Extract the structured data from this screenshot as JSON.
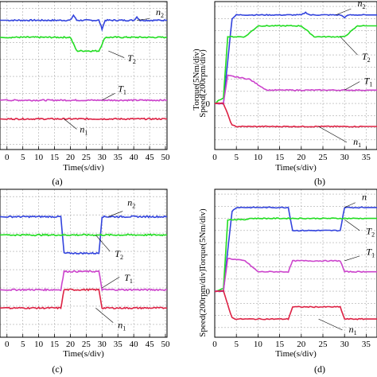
{
  "figure": {
    "panels": [
      {
        "id": "a",
        "caption": "(a)",
        "ylabel": "",
        "xlabel": "Time(s/div)",
        "xticks": [
          "0",
          "5",
          "10",
          "15",
          "20",
          "25",
          "30",
          "35",
          "40",
          "45",
          "50"
        ],
        "marker_zero": "",
        "labels": [
          {
            "text": "n",
            "sub": "2"
          },
          {
            "text": "T",
            "sub": "2"
          },
          {
            "text": "T",
            "sub": "1"
          },
          {
            "text": "n",
            "sub": "1"
          }
        ]
      },
      {
        "id": "b",
        "caption": "(b)",
        "ylabel": "Speed(200rpm/div)",
        "xlabel": "Time(s/div)",
        "xticks": [
          "0",
          "5",
          "10",
          "15",
          "20",
          "25",
          "30",
          "35"
        ],
        "marker_zero": "0",
        "labels": [
          {
            "text": "n",
            "sub": "2"
          },
          {
            "text": "T",
            "sub": "2"
          },
          {
            "text": "T",
            "sub": "1"
          },
          {
            "text": "n",
            "sub": "1"
          }
        ]
      },
      {
        "id": "c",
        "caption": "(c)",
        "ylabel": "Torque(5Nm/div)",
        "xlabel": "Time(s/div)",
        "xticks": [
          "0",
          "5",
          "10",
          "15",
          "20",
          "25",
          "30",
          "35",
          "40",
          "45",
          "50"
        ],
        "marker_zero": "",
        "labels": [
          {
            "text": "n",
            "sub": "2"
          },
          {
            "text": "T",
            "sub": "2"
          },
          {
            "text": "T",
            "sub": "1"
          },
          {
            "text": "n",
            "sub": "1"
          }
        ]
      },
      {
        "id": "d",
        "caption": "(d)",
        "ylabel": "Speed(200rpm/div)",
        "xlabel": "Time(s/div)",
        "xticks": [
          "0",
          "5",
          "10",
          "15",
          "20",
          "25",
          "30",
          "35"
        ],
        "marker_zero": "0",
        "labels": [
          {
            "text": "n",
            "sub": ""
          },
          {
            "text": "T",
            "sub": "2"
          },
          {
            "text": "T",
            "sub": "1"
          },
          {
            "text": "n",
            "sub": "1"
          }
        ]
      }
    ],
    "shared_ylabel_between_a_b": "Torque(5Nm/div)"
  },
  "colors": {
    "n2": "#3344dd",
    "T2": "#22dd22",
    "T1": "#cc44cc",
    "n1": "#dd2244",
    "grid": "#aaaaaa",
    "axis": "#000000"
  },
  "chart_data": [
    {
      "type": "line",
      "panel": "a",
      "x_unit": "s",
      "xlim": [
        0,
        50
      ],
      "series": [
        {
          "name": "n2",
          "x": [
            0,
            20,
            21,
            22,
            29,
            30,
            31,
            32,
            40,
            41,
            42,
            50
          ],
          "y": [
            7.3,
            7.3,
            7.6,
            7.3,
            7.3,
            6.8,
            7.3,
            7.3,
            7.3,
            7.5,
            7.3,
            7.3
          ]
        },
        {
          "name": "T2",
          "x": [
            0,
            20,
            22,
            29,
            31,
            40,
            42,
            50
          ],
          "y": [
            6.3,
            6.3,
            5.5,
            5.5,
            6.3,
            6.3,
            6.3,
            6.3
          ]
        },
        {
          "name": "T1",
          "x": [
            0,
            50
          ],
          "y": [
            2.6,
            2.6
          ]
        },
        {
          "name": "n1",
          "x": [
            0,
            50
          ],
          "y": [
            1.5,
            1.5
          ]
        }
      ]
    },
    {
      "type": "line",
      "panel": "b",
      "x_unit": "s",
      "xlim": [
        0,
        35
      ],
      "series": [
        {
          "name": "n2",
          "x": [
            0,
            2,
            4,
            5,
            20,
            21,
            22,
            29,
            30,
            31,
            35
          ],
          "y": [
            0,
            0,
            7.0,
            7.3,
            7.3,
            7.5,
            7.3,
            7.3,
            7.1,
            7.3,
            7.3
          ]
        },
        {
          "name": "T2",
          "x": [
            0,
            2,
            3,
            7,
            10,
            20,
            23,
            30,
            33,
            35
          ],
          "y": [
            0,
            0.5,
            5.5,
            5.5,
            6.4,
            6.4,
            5.5,
            5.5,
            6.4,
            6.4
          ]
        },
        {
          "name": "T1",
          "x": [
            0,
            2,
            3,
            8,
            12,
            35
          ],
          "y": [
            0,
            0,
            2.3,
            2.0,
            1.1,
            1.1
          ]
        },
        {
          "name": "n1",
          "x": [
            0,
            2,
            4,
            5,
            35
          ],
          "y": [
            0,
            0,
            -1.8,
            -1.9,
            -1.9
          ]
        }
      ]
    },
    {
      "type": "line",
      "panel": "c",
      "x_unit": "s",
      "xlim": [
        0,
        50
      ],
      "series": [
        {
          "name": "n2",
          "x": [
            0,
            17,
            18,
            29,
            30,
            50
          ],
          "y": [
            6.9,
            6.9,
            4.9,
            4.9,
            6.9,
            6.9
          ]
        },
        {
          "name": "T2",
          "x": [
            0,
            50
          ],
          "y": [
            5.9,
            5.9
          ]
        },
        {
          "name": "T1",
          "x": [
            0,
            17,
            18,
            29,
            30,
            50
          ],
          "y": [
            2.9,
            2.9,
            3.9,
            3.9,
            2.9,
            2.9
          ]
        },
        {
          "name": "n1",
          "x": [
            0,
            17,
            18,
            29,
            30,
            50
          ],
          "y": [
            1.9,
            1.9,
            2.9,
            2.9,
            1.9,
            1.9
          ]
        }
      ]
    },
    {
      "type": "line",
      "panel": "d",
      "x_unit": "s",
      "xlim": [
        0,
        35
      ],
      "series": [
        {
          "name": "n2",
          "x": [
            0,
            2,
            4,
            5,
            17,
            18,
            29,
            30,
            35
          ],
          "y": [
            0,
            0,
            6.6,
            6.9,
            6.9,
            5.0,
            5.0,
            6.9,
            6.9
          ]
        },
        {
          "name": "T2",
          "x": [
            0,
            2,
            3,
            7,
            8,
            35
          ],
          "y": [
            0,
            0.2,
            5.9,
            5.9,
            6.0,
            6.0
          ]
        },
        {
          "name": "T1",
          "x": [
            0,
            2,
            3,
            7,
            10,
            17,
            18,
            29,
            30,
            35
          ],
          "y": [
            0,
            0,
            2.7,
            2.5,
            1.6,
            1.6,
            2.5,
            2.5,
            1.6,
            1.6
          ]
        },
        {
          "name": "n1",
          "x": [
            0,
            2,
            4,
            5,
            17,
            18,
            29,
            30,
            35
          ],
          "y": [
            0,
            0,
            -2.2,
            -2.3,
            -2.3,
            -1.3,
            -1.3,
            -2.3,
            -2.3
          ]
        }
      ]
    }
  ]
}
